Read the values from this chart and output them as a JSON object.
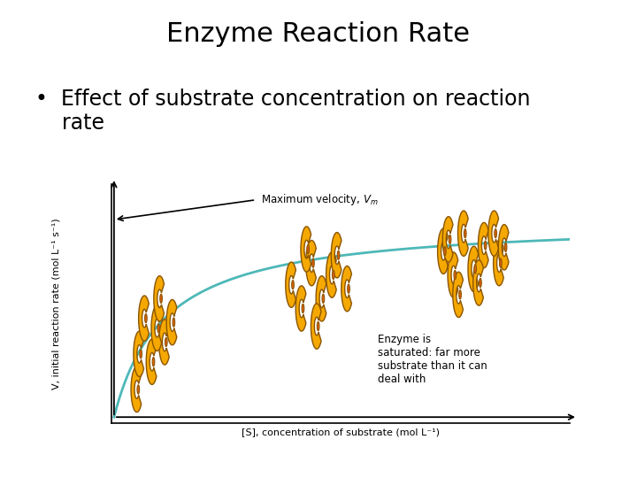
{
  "title": "Enzyme Reaction Rate",
  "bullet_line1": "•  Effect of substrate concentration on reaction",
  "bullet_line2": "    rate",
  "xlabel": "[S], concentration of substrate (mol L⁻¹)",
  "ylabel": "V, initial reaction rate (mol L⁻¹ s⁻¹)",
  "annotation_text": "Enzyme is\nsaturated: far more\nsubstrate than it can\ndeal with",
  "curve_color": "#4eb8b8",
  "title_fontsize": 22,
  "bullet_fontsize": 17,
  "axis_label_fontsize": 8,
  "annotation_fontsize": 8.5,
  "vm_label_fontsize": 8.5,
  "background": "#ffffff",
  "enzyme_outer_color": "#f5a800",
  "enzyme_inner_color": "#e06010",
  "enzyme_edge_color": "#8B5500",
  "vm_arrow_color": "#000000",
  "group1_positions": [
    [
      0.45,
      0.14
    ],
    [
      0.75,
      0.28
    ],
    [
      1.0,
      0.38
    ],
    [
      0.5,
      0.32
    ],
    [
      0.85,
      0.45
    ],
    [
      1.15,
      0.48
    ],
    [
      0.6,
      0.5
    ],
    [
      0.9,
      0.6
    ]
  ],
  "group2_positions": [
    [
      3.5,
      0.67
    ],
    [
      3.9,
      0.78
    ],
    [
      4.3,
      0.72
    ],
    [
      3.7,
      0.55
    ],
    [
      4.1,
      0.6
    ],
    [
      3.8,
      0.85
    ],
    [
      4.4,
      0.82
    ],
    [
      4.6,
      0.65
    ],
    [
      4.0,
      0.46
    ]
  ],
  "group3_positions": [
    [
      6.5,
      0.84
    ],
    [
      6.9,
      0.93
    ],
    [
      7.3,
      0.87
    ],
    [
      7.6,
      0.78
    ],
    [
      6.7,
      0.72
    ],
    [
      7.1,
      0.75
    ],
    [
      7.5,
      0.93
    ],
    [
      6.8,
      0.62
    ],
    [
      7.2,
      0.68
    ],
    [
      7.7,
      0.86
    ],
    [
      6.6,
      0.9
    ]
  ],
  "enzyme_size": 0.115,
  "Km": 1.0,
  "Vmax": 1.0,
  "xlim": [
    -0.05,
    9.0
  ],
  "ylim": [
    -0.03,
    1.18
  ]
}
